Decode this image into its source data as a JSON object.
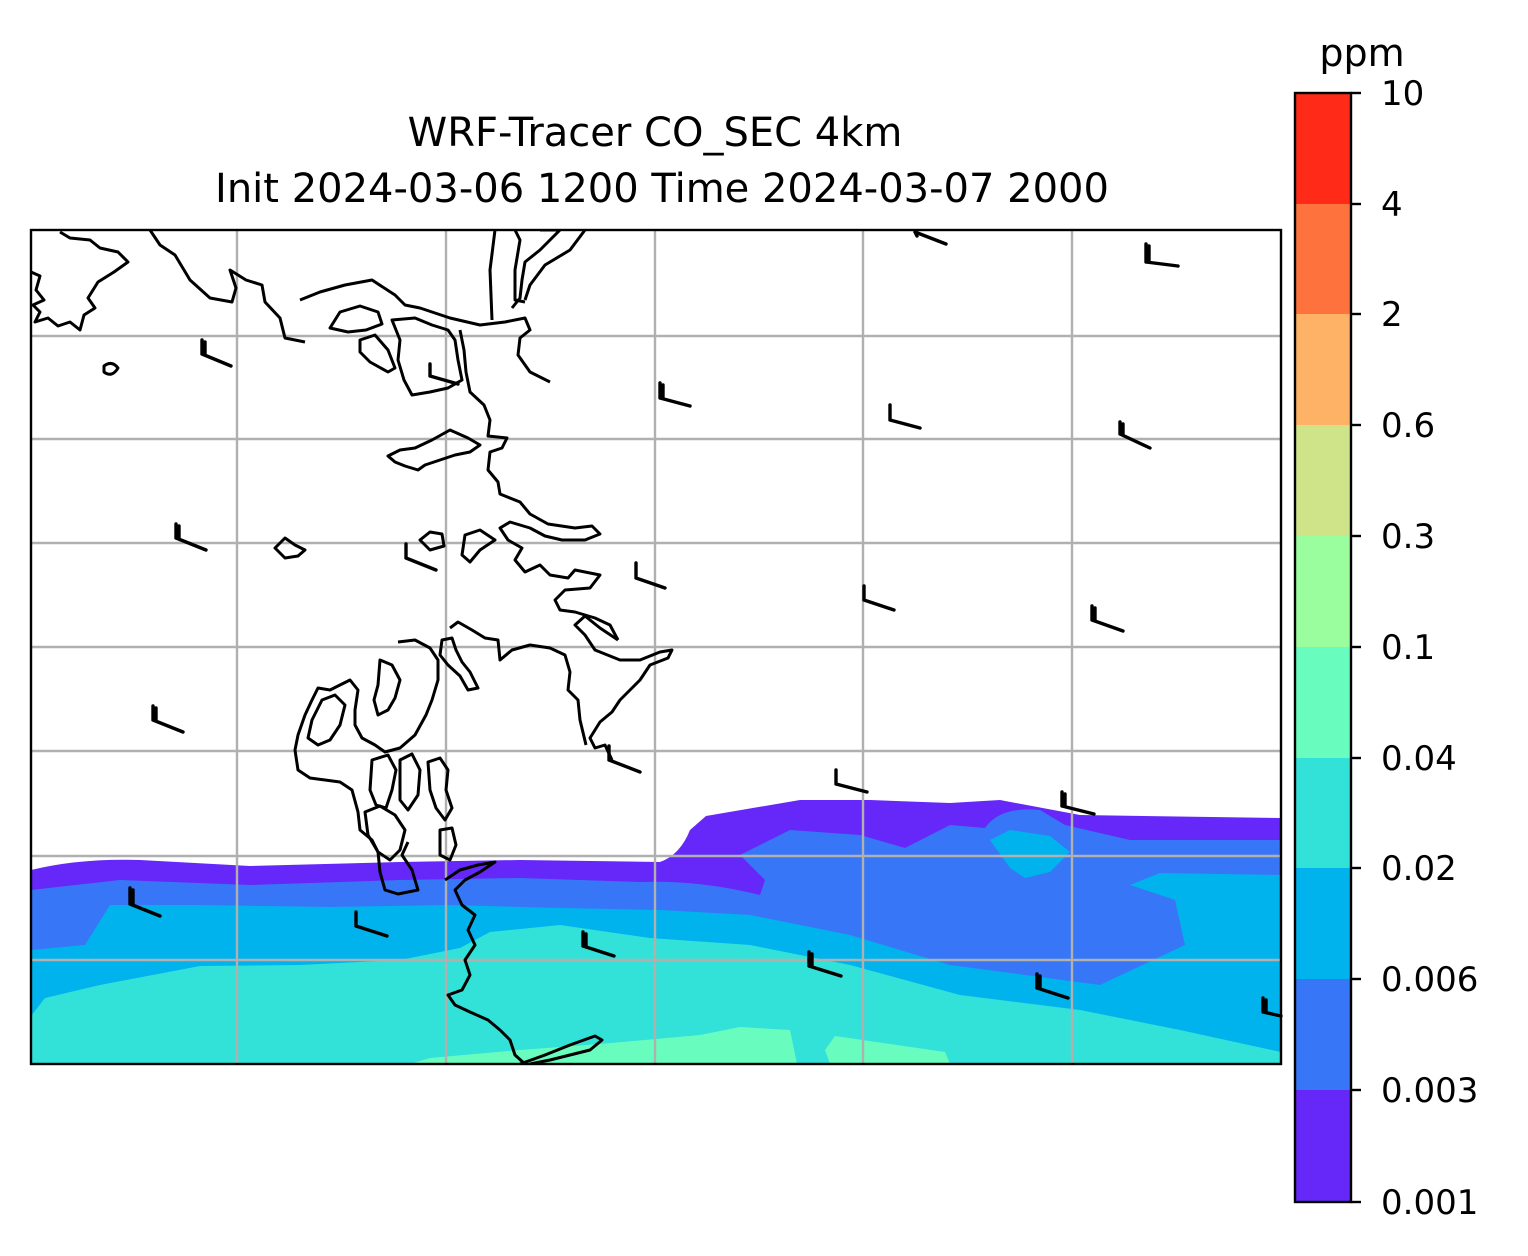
{
  "title": {
    "line1": "WRF-Tracer CO_SEC 4km",
    "line2": "Init 2024-03-06 1200 Time 2024-03-07 2000"
  },
  "colorbar": {
    "unit": "ppm",
    "levels": [
      "0.001",
      "0.003",
      "0.006",
      "0.02",
      "0.04",
      "0.1",
      "0.3",
      "0.6",
      "2",
      "4",
      "10"
    ],
    "colors": [
      "#6528f8",
      "#3777f7",
      "#00b3ec",
      "#32e2d8",
      "#68fdbf",
      "#9afd9e",
      "#cfe488",
      "#fdb265",
      "#fe733d",
      "#ff2a17"
    ]
  },
  "map": {
    "background": "#ffffff",
    "gridline_color": "#b0b0b0",
    "coastline_color": "#000000",
    "wind_barb_color": "#000000"
  }
}
